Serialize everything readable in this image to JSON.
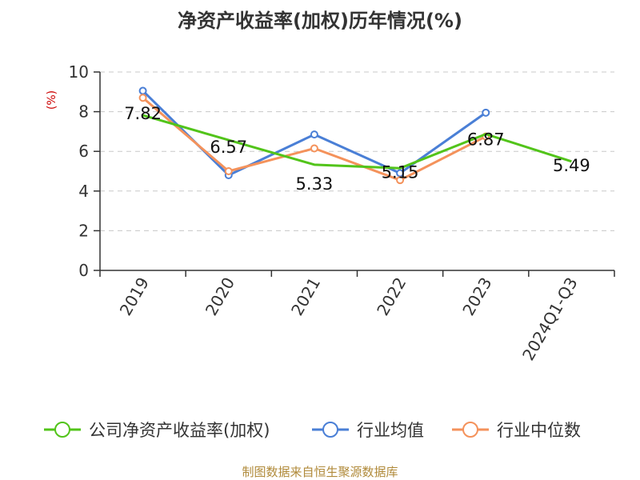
{
  "chart_data": {
    "type": "line",
    "title": "净资产收益率(加权)历年情况(%)",
    "ylabel": "(%)",
    "xlabel": "",
    "ylim": [
      0,
      10
    ],
    "yticks": [
      0,
      2,
      4,
      6,
      8,
      10
    ],
    "grid": true,
    "legend_position": "bottom",
    "categories": [
      "2019",
      "2020",
      "2021",
      "2022",
      "2023",
      "2024Q1-Q3"
    ],
    "series": [
      {
        "name": "公司净资产收益率(加权)",
        "color": "#52c41a",
        "values": [
          7.82,
          6.57,
          5.33,
          5.15,
          6.87,
          5.49
        ],
        "show_labels": true,
        "markers": false
      },
      {
        "name": "行业均值",
        "color": "#4a7fd6",
        "values": [
          9.05,
          4.8,
          6.85,
          4.9,
          7.95,
          null
        ],
        "show_labels": false,
        "markers": true
      },
      {
        "name": "行业中位数",
        "color": "#f4925b",
        "values": [
          8.7,
          5.0,
          6.15,
          4.55,
          6.75,
          null
        ],
        "show_labels": false,
        "markers": true
      }
    ],
    "data_labels": [
      "7.82",
      "6.57",
      "5.33",
      "5.15",
      "6.87",
      "5.49"
    ]
  },
  "source": "制图数据来自恒生聚源数据库"
}
